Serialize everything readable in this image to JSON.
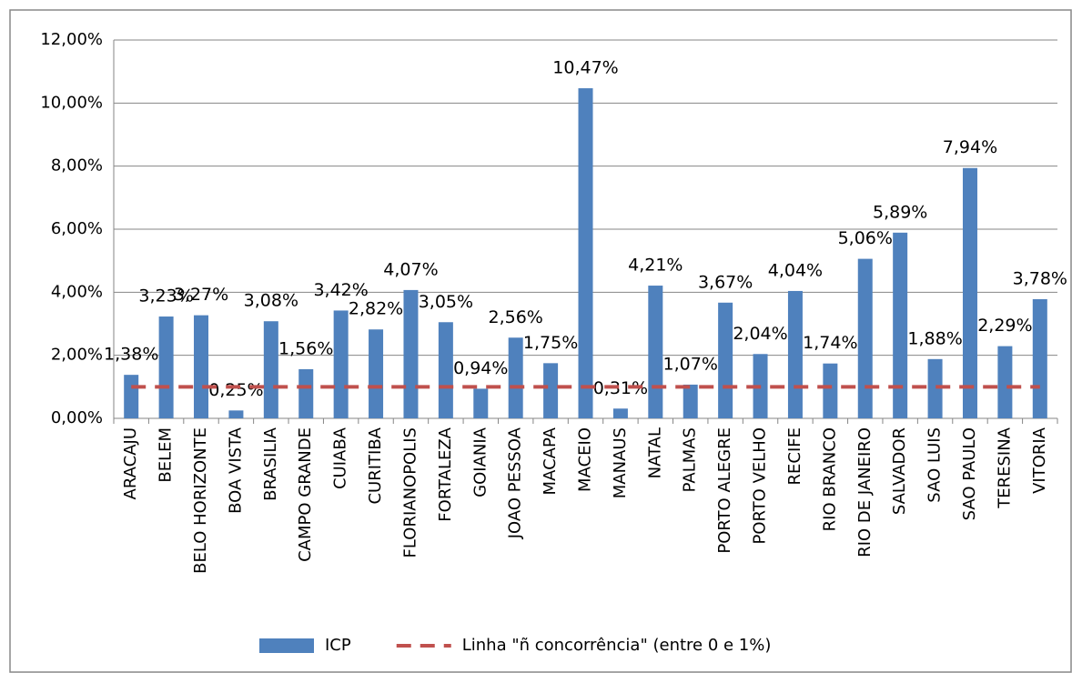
{
  "chart_data": {
    "type": "bar",
    "categories": [
      "ARACAJU",
      "BELEM",
      "BELO HORIZONTE",
      "BOA VISTA",
      "BRASILIA",
      "CAMPO GRANDE",
      "CUIABA",
      "CURITIBA",
      "FLORIANOPOLIS",
      "FORTALEZA",
      "GOIANIA",
      "JOAO PESSOA",
      "MACAPA",
      "MACEIO",
      "MANAUS",
      "NATAL",
      "PALMAS",
      "PORTO ALEGRE",
      "PORTO VELHO",
      "RECIFE",
      "RIO BRANCO",
      "RIO DE JANEIRO",
      "SALVADOR",
      "SAO LUIS",
      "SAO PAULO",
      "TERESINA",
      "VITORIA"
    ],
    "series": [
      {
        "name": "ICP",
        "type": "bar",
        "color": "#4f81bd",
        "values": [
          1.38,
          3.23,
          3.27,
          0.25,
          3.08,
          1.56,
          3.42,
          2.82,
          4.07,
          3.05,
          0.94,
          2.56,
          1.75,
          10.47,
          0.31,
          4.21,
          1.07,
          3.67,
          2.04,
          4.04,
          1.74,
          5.06,
          5.89,
          1.88,
          7.94,
          2.29,
          3.78
        ],
        "value_labels": [
          "1,38%",
          "3,23%",
          "3,27%",
          "0,25%",
          "3,08%",
          "1,56%",
          "3,42%",
          "2,82%",
          "4,07%",
          "3,05%",
          "0,94%",
          "2,56%",
          "1,75%",
          "10,47%",
          "0,31%",
          "4,21%",
          "1,07%",
          "3,67%",
          "2,04%",
          "4,04%",
          "1,74%",
          "5,06%",
          "5,89%",
          "1,88%",
          "7,94%",
          "2,29%",
          "3,78%"
        ]
      },
      {
        "name": "Linha \"ñ concorrência\" (entre 0 e 1%)",
        "type": "line",
        "color": "#c0504d",
        "dashed": true,
        "values": [
          1,
          1,
          1,
          1,
          1,
          1,
          1,
          1,
          1,
          1,
          1,
          1,
          1,
          1,
          1,
          1,
          1,
          1,
          1,
          1,
          1,
          1,
          1,
          1,
          1,
          1,
          1
        ]
      }
    ],
    "ylim": [
      0,
      12
    ],
    "yticks": [
      {
        "value": 0,
        "label": "0,00%"
      },
      {
        "value": 2,
        "label": "2,00%"
      },
      {
        "value": 4,
        "label": "4,00%"
      },
      {
        "value": 6,
        "label": "6,00%"
      },
      {
        "value": 8,
        "label": "8,00%"
      },
      {
        "value": 10,
        "label": "10,00%"
      },
      {
        "value": 12,
        "label": "12,00%"
      }
    ],
    "grid": true,
    "legend": "bottom"
  }
}
